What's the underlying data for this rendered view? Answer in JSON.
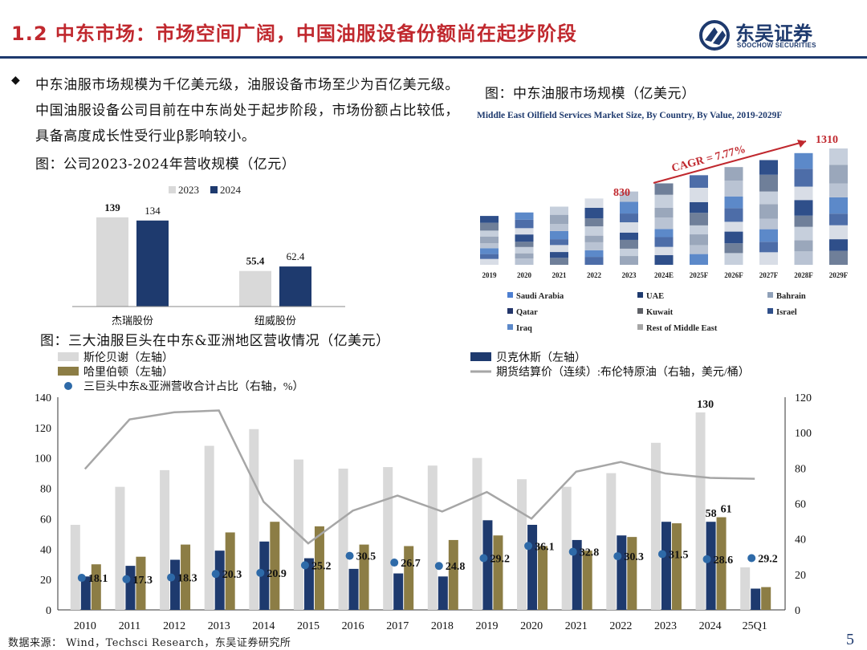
{
  "header": {
    "title": "1.2 中东市场：市场空间广阔，中国油服设备份额尚在起步阶段",
    "logo_cn": "东吴证券",
    "logo_en": "SOOCHOW SECURITIES"
  },
  "intro": {
    "bullet": "◆",
    "text": "中东油服市场规模为千亿美元级，油服设备市场至少为百亿美元级。中国油服设备公司目前在中东尚处于起步阶段，市场份额占比较低，具备高度成长性受行业β影响较小。"
  },
  "captions": {
    "company": "图：公司2023-2024年营收规模（亿元）",
    "me_market": "图：中东油服市场规模（亿美元）",
    "giants": "图：三大油服巨头在中东&亚洲地区营收情况（亿美元）"
  },
  "footer": {
    "source": "数据来源： Wind，Techsci Research，东吴证券研究所",
    "page": "5"
  },
  "colors": {
    "accent": "#c0282e",
    "navy": "#1e3a6e",
    "light_gray": "#d9d9d9",
    "olive": "#8c7d45",
    "line_gray": "#a6a6a6",
    "dot_blue": "#2e6aa8"
  },
  "chart_data": [
    {
      "id": "company_revenue",
      "type": "bar",
      "title": "",
      "categories": [
        "杰瑞股份",
        "纽威股份"
      ],
      "series": [
        {
          "name": "2023",
          "values": [
            139,
            55.4
          ],
          "labels": [
            "139",
            "55.4"
          ]
        },
        {
          "name": "2024",
          "values": [
            134,
            62.4
          ],
          "labels": [
            "134",
            "62.4"
          ]
        }
      ],
      "ylim": [
        0,
        150
      ],
      "legend": "top"
    },
    {
      "id": "me_market",
      "type": "bar",
      "stacked": true,
      "title": "Middle East Oilfield Services Market Size, By Country, By Value, 2019-2029F",
      "categories": [
        "2019",
        "2020",
        "2021",
        "2022",
        "2023",
        "2024E",
        "2025F",
        "2026F",
        "2027F",
        "2028F",
        "2029F"
      ],
      "totals_relative": [
        0.42,
        0.45,
        0.5,
        0.57,
        0.63,
        0.7,
        0.77,
        0.84,
        0.9,
        0.96,
        1.0
      ],
      "series_names": [
        "Saudi Arabia",
        "UAE",
        "Bahrain",
        "Qatar",
        "Kuwait",
        "Israel",
        "Iraq",
        "Rest of Middle East"
      ],
      "annotations": {
        "start_value": "830",
        "end_value": "1310",
        "cagr": "CAGR = 7.77%"
      },
      "legend": "bottom"
    },
    {
      "id": "giants",
      "type": "bar",
      "title": "",
      "categories": [
        "2010",
        "2011",
        "2012",
        "2013",
        "2014",
        "2015",
        "2016",
        "2017",
        "2018",
        "2019",
        "2020",
        "2021",
        "2022",
        "2023",
        "2024",
        "25Q1"
      ],
      "series": [
        {
          "name": "斯伦贝谢（左轴）",
          "type": "bar",
          "axis": "left",
          "values": [
            56,
            81,
            92,
            108,
            119,
            99,
            93,
            94,
            95,
            100,
            86,
            81,
            90,
            110,
            130,
            28
          ]
        },
        {
          "name": "贝克休斯（左轴）",
          "type": "bar",
          "axis": "left",
          "values": [
            22,
            29,
            33,
            39,
            45,
            34,
            27,
            24,
            22,
            59,
            56,
            46,
            49,
            58,
            58,
            14
          ]
        },
        {
          "name": "哈里伯顿（左轴）",
          "type": "bar",
          "axis": "left",
          "values": [
            30,
            35,
            43,
            51,
            58,
            55,
            43,
            42,
            46,
            49,
            42,
            39,
            48,
            57,
            61,
            15
          ]
        },
        {
          "name": "期货结算价（连续）:布伦特原油（右轴，美元/桶）",
          "type": "line",
          "axis": "right",
          "values": [
            79.5,
            107.5,
            111.5,
            112.5,
            61,
            37.5,
            56,
            64.5,
            55.5,
            66.5,
            51.5,
            78,
            83.5,
            77,
            74.5,
            74
          ]
        },
        {
          "name": "三巨头中东&亚洲营收合计占比（右轴，%）",
          "type": "scatter",
          "axis": "right",
          "values": [
            18.1,
            17.3,
            18.3,
            20.3,
            20.9,
            25.2,
            30.5,
            26.7,
            24.8,
            29.2,
            36.1,
            32.8,
            30.3,
            31.5,
            28.6,
            29.2
          ],
          "labels": [
            "18.1",
            "17.3",
            "18.3",
            "20.3",
            "20.9",
            "25.2",
            "30.5",
            "26.7",
            "24.8",
            "29.2",
            "36.1",
            "32.8",
            "30.3",
            "31.5",
            "28.6",
            "29.2"
          ]
        }
      ],
      "value_labels": {
        "slb_2024": "130",
        "bhi_2024": "58",
        "hal_2024": "61"
      },
      "yleft": {
        "lim": [
          0,
          140
        ],
        "ticks": [
          "0",
          "20",
          "40",
          "60",
          "80",
          "100",
          "120",
          "140"
        ]
      },
      "yright": {
        "lim": [
          0,
          120
        ],
        "ticks": [
          "0",
          "20",
          "40",
          "60",
          "80",
          "100",
          "120"
        ]
      },
      "legend": "top"
    }
  ]
}
